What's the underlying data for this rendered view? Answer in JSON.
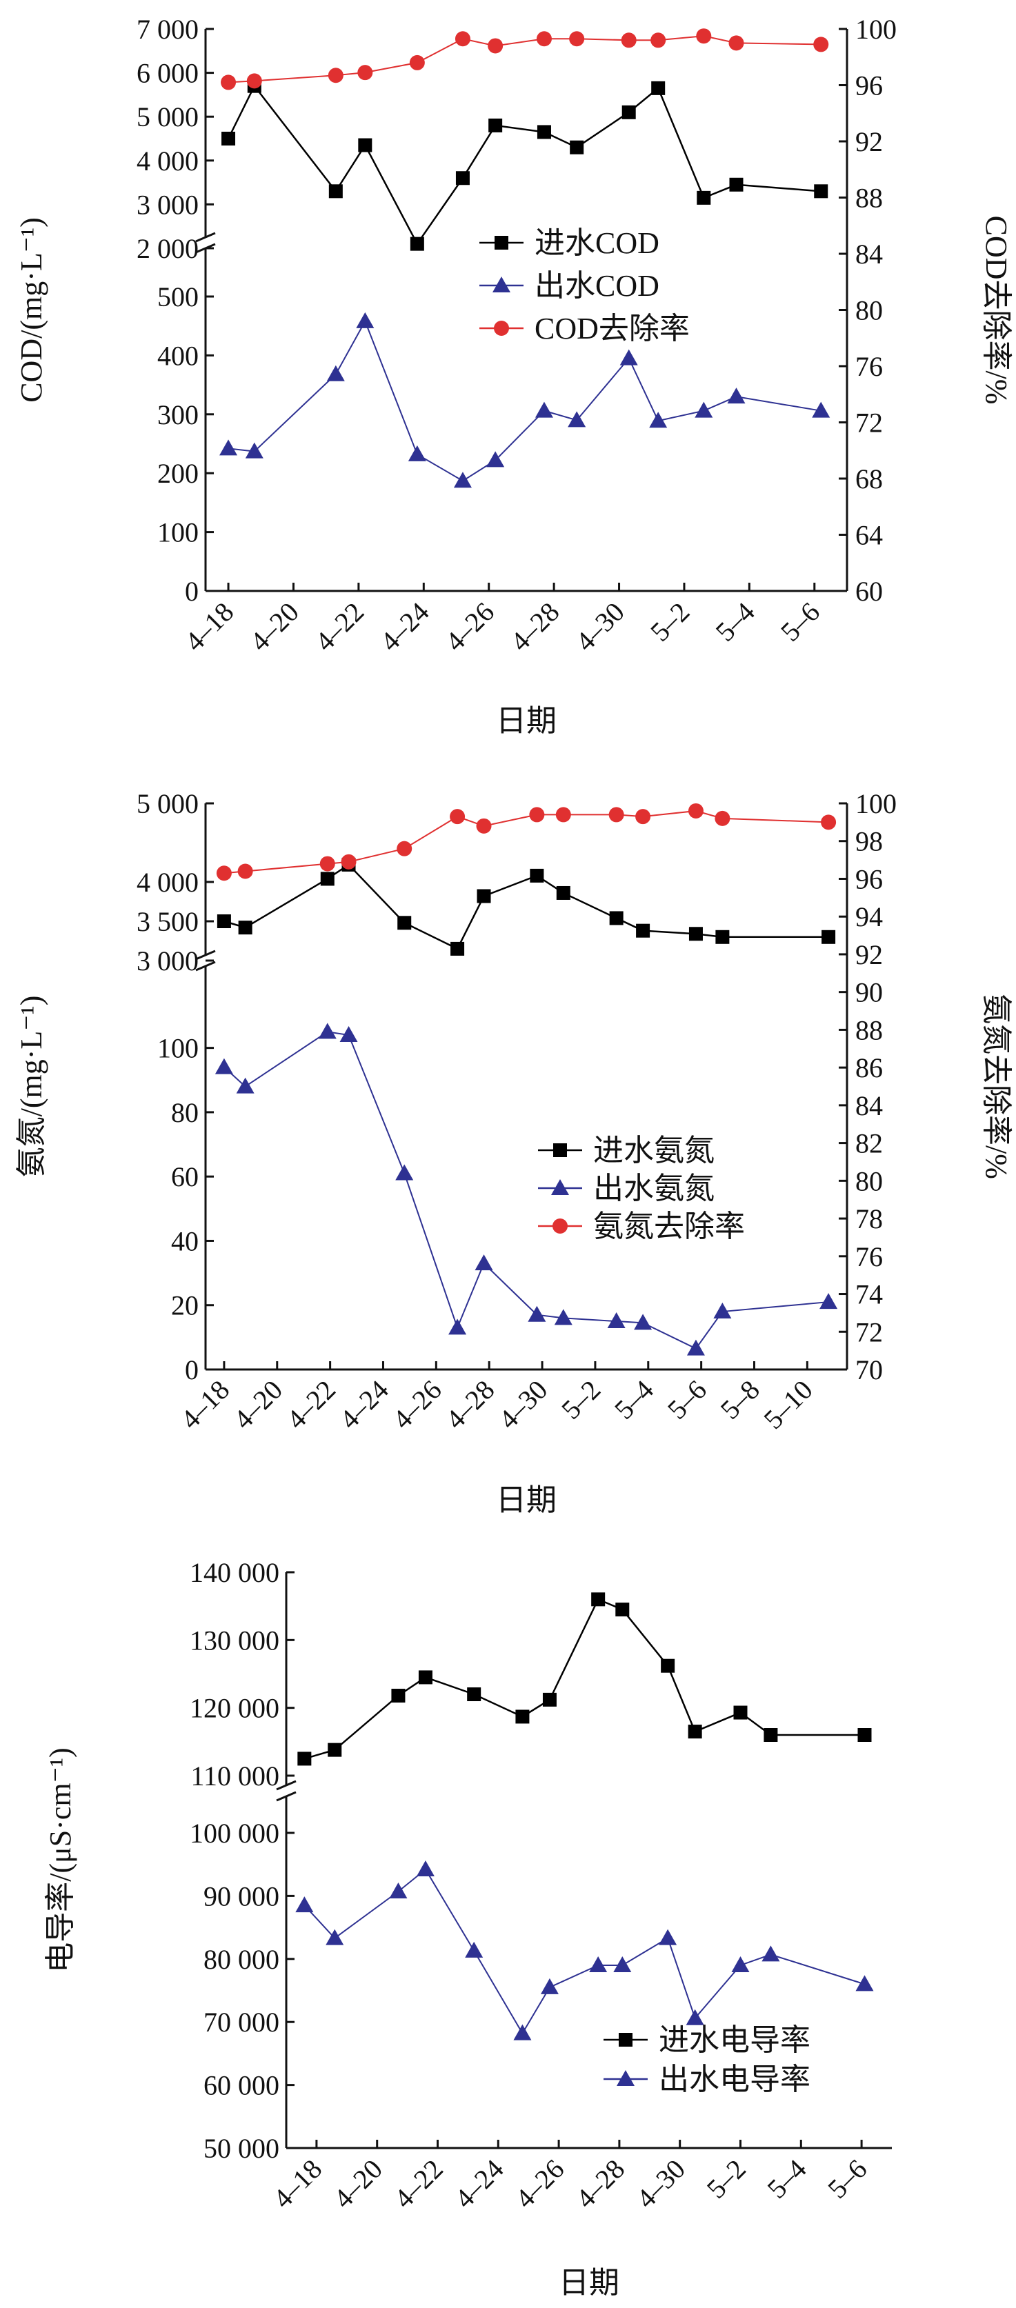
{
  "chart_data": [
    {
      "id": "cod",
      "type": "line",
      "xlabel": "日期",
      "ylabel": "COD/(mg·L⁻¹)",
      "y2label": "COD去除率/%",
      "xticks": [
        "4–18",
        "4–20",
        "4–22",
        "4–24",
        "4–26",
        "4–28",
        "4–30",
        "5–2",
        "5–4",
        "5–6"
      ],
      "x_range": [
        17.3,
        37.0
      ],
      "y_lower": [
        0,
        500
      ],
      "y_lower_ticks": [
        "0",
        "100",
        "200",
        "300",
        "400",
        "500"
      ],
      "y_upper": [
        2000,
        7000
      ],
      "y_upper_ticks": [
        "2 000",
        "3 000",
        "4 000",
        "5 000",
        "6 000",
        "7 000"
      ],
      "y2_range": [
        60,
        100
      ],
      "y2_ticks": [
        "60",
        "64",
        "68",
        "72",
        "76",
        "80",
        "84",
        "88",
        "92",
        "96",
        "100"
      ],
      "legend": [
        "进水COD",
        "出水COD",
        "COD去除率"
      ],
      "series": [
        {
          "name": "进水COD",
          "color": "#000000",
          "marker": "square",
          "axis": "left",
          "x": [
            18,
            18.8,
            21.3,
            22.2,
            23.8,
            25.2,
            26.2,
            27.7,
            28.7,
            30.3,
            31.2,
            32.6,
            33.6,
            36.2
          ],
          "y": [
            4500,
            5700,
            3300,
            4350,
            2100,
            3600,
            4800,
            4650,
            4300,
            5100,
            5650,
            3150,
            3450,
            3300
          ]
        },
        {
          "name": "出水COD",
          "color": "#2e3192",
          "marker": "triangle",
          "axis": "left",
          "x": [
            18,
            18.8,
            21.3,
            22.2,
            23.8,
            25.2,
            26.2,
            27.7,
            28.7,
            30.3,
            31.2,
            32.6,
            33.6,
            36.2
          ],
          "y": [
            242,
            237,
            368,
            458,
            232,
            187,
            222,
            306,
            290,
            395,
            289,
            306,
            330,
            306
          ]
        },
        {
          "name": "COD去除率",
          "color": "#e03030",
          "marker": "circle",
          "axis": "right",
          "x": [
            18,
            18.8,
            21.3,
            22.2,
            23.8,
            25.2,
            26.2,
            27.7,
            28.7,
            30.3,
            31.2,
            32.6,
            33.6,
            36.2
          ],
          "y": [
            96.2,
            96.3,
            96.7,
            96.9,
            97.6,
            99.3,
            98.8,
            99.3,
            99.3,
            99.2,
            99.2,
            99.5,
            99.0,
            98.9
          ]
        }
      ]
    },
    {
      "id": "nh3",
      "type": "line",
      "xlabel": "日期",
      "ylabel": "氨氮/(mg·L⁻¹)",
      "y2label": "氨氮去除率/%",
      "xticks": [
        "4–18",
        "4–20",
        "4–22",
        "4–24",
        "4–26",
        "4–28",
        "4–30",
        "5–2",
        "5–4",
        "5–6",
        "5–8",
        "5–10"
      ],
      "x_range": [
        17.3,
        41.5
      ],
      "y_lower": [
        0,
        110
      ],
      "y_lower_ticks": [
        "0",
        "20",
        "40",
        "60",
        "80",
        "100"
      ],
      "y_upper": [
        3000,
        5000
      ],
      "y_upper_ticks": [
        "3 000",
        "3 500",
        "4 000",
        "5 000"
      ],
      "y2_range": [
        70,
        100
      ],
      "y2_ticks": [
        "70",
        "72",
        "74",
        "76",
        "78",
        "80",
        "82",
        "84",
        "86",
        "88",
        "90",
        "92",
        "94",
        "96",
        "98",
        "100"
      ],
      "legend": [
        "进水氨氮",
        "出水氨氮",
        "氨氮去除率"
      ],
      "series": [
        {
          "name": "进水氨氮",
          "color": "#000000",
          "marker": "square",
          "axis": "left",
          "x": [
            18,
            18.8,
            21.9,
            22.7,
            24.8,
            26.8,
            27.8,
            29.8,
            30.8,
            32.8,
            33.8,
            35.8,
            36.8,
            40.8
          ],
          "y": [
            3500,
            3420,
            4040,
            4220,
            3480,
            3150,
            3820,
            4080,
            3860,
            3540,
            3380,
            3340,
            3300,
            3300
          ]
        },
        {
          "name": "出水氨氮",
          "color": "#2e3192",
          "marker": "triangle",
          "axis": "left",
          "x": [
            18,
            18.8,
            21.9,
            22.7,
            24.8,
            26.8,
            27.8,
            29.8,
            30.8,
            32.8,
            33.8,
            35.8,
            36.8,
            40.8
          ],
          "y": [
            94,
            88,
            105,
            104,
            61,
            13,
            33,
            17,
            16,
            15,
            14.5,
            6.5,
            18,
            21
          ]
        },
        {
          "name": "氨氮去除率",
          "color": "#e03030",
          "marker": "circle",
          "axis": "right",
          "x": [
            18,
            18.8,
            21.9,
            22.7,
            24.8,
            26.8,
            27.8,
            29.8,
            30.8,
            32.8,
            33.8,
            35.8,
            36.8,
            40.8
          ],
          "y": [
            96.3,
            96.4,
            96.8,
            96.9,
            97.6,
            99.3,
            98.8,
            99.4,
            99.4,
            99.4,
            99.3,
            99.6,
            99.2,
            99.0
          ]
        }
      ]
    },
    {
      "id": "conductivity",
      "type": "line",
      "xlabel": "日期",
      "ylabel": "电导率/(μS·cm⁻¹)",
      "xticks": [
        "4–18",
        "4–20",
        "4–22",
        "4–24",
        "4–26",
        "4–28",
        "4–30",
        "5–2",
        "5–4",
        "5–6"
      ],
      "x_range": [
        17.0,
        37.0
      ],
      "y_lower": [
        50000,
        100000
      ],
      "y_lower_ticks": [
        "50 000",
        "60 000",
        "70 000",
        "80 000",
        "90 000",
        "100 000"
      ],
      "y_upper": [
        110000,
        140000
      ],
      "y_upper_ticks": [
        "110 000",
        "120 000",
        "130 000",
        "140 000"
      ],
      "legend": [
        "进水电导率",
        "出水电导率"
      ],
      "series": [
        {
          "name": "进水电导率",
          "color": "#000000",
          "marker": "square",
          "axis": "left",
          "x": [
            17.6,
            18.6,
            20.7,
            21.6,
            23.2,
            24.8,
            25.7,
            27.3,
            28.1,
            29.6,
            30.5,
            32.0,
            33.0,
            36.1
          ],
          "y": [
            112500,
            113800,
            121800,
            124500,
            122000,
            118700,
            121200,
            136000,
            134500,
            126200,
            116500,
            119300,
            116000,
            116000
          ]
        },
        {
          "name": "出水电导率",
          "color": "#2e3192",
          "marker": "triangle",
          "axis": "left",
          "x": [
            17.6,
            18.6,
            20.7,
            21.6,
            23.2,
            24.8,
            25.7,
            27.3,
            28.1,
            29.6,
            30.5,
            32.0,
            33.0,
            36.1
          ],
          "y": [
            88500,
            83300,
            90700,
            94200,
            81300,
            68200,
            75500,
            79000,
            79000,
            83300,
            70600,
            79000,
            80700,
            76000
          ]
        }
      ]
    }
  ]
}
